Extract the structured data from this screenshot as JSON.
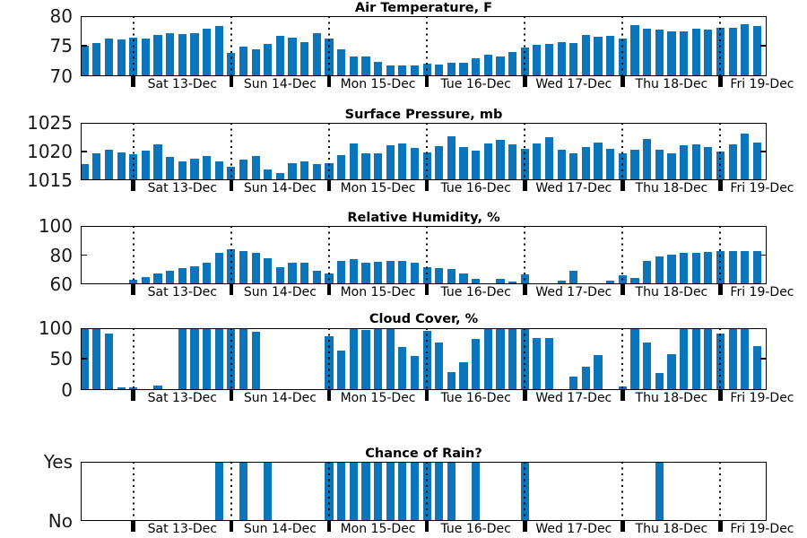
{
  "figure_title": "Weather forecast time-series (MATLAB-style stacked bar charts)",
  "colors": {
    "bar_fill": "#0b75bc",
    "axis": "#000000",
    "tick_text": "#1a1a1a",
    "background": "#ffffff"
  },
  "x_axis": {
    "n_slots": 56,
    "hours_per_slot": 3,
    "slots_per_day": 8,
    "day_boundary_slots": [
      4,
      12,
      20,
      28,
      36,
      44,
      52
    ],
    "day_labels": [
      "Sat 13-Dec",
      "Sun 14-Dec",
      "Mon 15-Dec",
      "Tue 16-Dec",
      "Wed 17-Dec",
      "Thu 18-Dec",
      "Fri 19-Dec"
    ]
  },
  "chart_data": [
    {
      "type": "bar",
      "title": "Air Temperature, F",
      "ylim": [
        70,
        80
      ],
      "yticks": [
        70,
        75,
        80
      ],
      "ytick_labels": [
        "70",
        "75",
        "80"
      ],
      "values": [
        75.0,
        75.5,
        76.2,
        76.1,
        76.4,
        76.2,
        76.8,
        77.1,
        77.0,
        77.1,
        77.9,
        78.3,
        73.9,
        74.9,
        74.4,
        75.3,
        76.7,
        76.4,
        75.7,
        77.1,
        76.3,
        74.4,
        73.3,
        73.3,
        72.4,
        71.7,
        71.7,
        71.7,
        72.1,
        71.9,
        72.2,
        72.2,
        73.0,
        73.6,
        73.2,
        74.0,
        74.8,
        75.2,
        75.4,
        75.6,
        75.5,
        76.8,
        76.6,
        76.7,
        76.3,
        78.5,
        77.9,
        77.8,
        77.5,
        77.4,
        77.9,
        77.8,
        78.0,
        78.1,
        78.7,
        78.3
      ]
    },
    {
      "type": "bar",
      "title": "Surface Pressure, mb",
      "ylim": [
        1015,
        1025
      ],
      "yticks": [
        1015,
        1020,
        1025
      ],
      "ytick_labels": [
        "1015",
        "1020",
        "1025"
      ],
      "values": [
        1017.7,
        1019.6,
        1020.3,
        1019.8,
        1019.5,
        1020.1,
        1021.3,
        1019.0,
        1018.2,
        1018.7,
        1019.1,
        1018.2,
        1017.3,
        1018.6,
        1019.2,
        1016.8,
        1016.2,
        1017.9,
        1018.2,
        1017.8,
        1017.9,
        1019.4,
        1021.4,
        1019.7,
        1019.7,
        1021.0,
        1021.4,
        1020.6,
        1019.8,
        1020.9,
        1022.7,
        1020.8,
        1020.1,
        1021.4,
        1022.0,
        1021.3,
        1020.4,
        1021.4,
        1022.5,
        1020.3,
        1019.6,
        1020.8,
        1021.6,
        1020.4,
        1019.6,
        1020.3,
        1022.2,
        1020.3,
        1019.6,
        1021.0,
        1021.3,
        1020.7,
        1019.9,
        1021.2,
        1023.1,
        1021.6
      ]
    },
    {
      "type": "bar",
      "title": "Relative Humidity, %",
      "ylim": [
        60,
        100
      ],
      "yticks": [
        60,
        80,
        100
      ],
      "ytick_labels": [
        "60",
        "80",
        "100"
      ],
      "values": [
        60,
        60,
        60,
        60,
        63,
        65,
        67.5,
        69.5,
        71,
        72.5,
        75,
        81.5,
        84,
        82.5,
        81.5,
        78,
        71.5,
        75,
        75,
        69,
        67.5,
        76,
        77.5,
        75,
        75.5,
        76,
        76,
        75,
        71.5,
        71,
        70.5,
        67.5,
        64,
        60,
        64,
        62,
        67,
        60,
        60,
        62.5,
        69.5,
        60,
        60.5,
        62.5,
        66,
        64.5,
        76,
        79,
        80.5,
        81.5,
        81.5,
        82,
        82.5,
        82.5,
        82.5,
        82.5
      ]
    },
    {
      "type": "bar",
      "title": "Cloud Cover, %",
      "ylim": [
        0,
        100
      ],
      "yticks": [
        0,
        50,
        100
      ],
      "ytick_labels": [
        "0",
        "50",
        "100"
      ],
      "values": [
        100,
        100,
        91,
        5,
        5,
        2,
        7,
        0,
        100,
        100,
        100,
        100,
        100,
        100,
        93,
        0,
        0,
        1,
        0,
        0,
        86,
        63,
        100,
        97,
        100,
        98,
        69,
        55,
        95,
        77,
        29,
        45,
        82,
        100,
        100,
        100,
        100,
        84,
        84,
        0,
        22,
        37,
        56,
        0,
        6,
        100,
        76,
        28,
        57,
        100,
        100,
        100,
        90,
        100,
        100,
        70
      ]
    },
    {
      "type": "bar",
      "title": "Chance of Rain?",
      "ylim": [
        0,
        1
      ],
      "yticks": [
        0,
        1
      ],
      "ytick_labels": [
        "No",
        "Yes"
      ],
      "values": [
        0,
        0,
        0,
        0,
        0,
        0,
        0,
        0,
        0,
        0,
        0,
        1,
        0,
        1,
        0,
        1,
        0,
        0,
        0,
        0,
        1,
        1,
        1,
        1,
        1,
        1,
        1,
        1,
        1,
        1,
        1,
        0,
        1,
        0,
        0,
        0,
        1,
        0,
        0,
        0,
        0,
        0,
        0,
        0,
        0,
        0,
        0,
        1,
        0,
        0,
        0,
        0,
        0,
        0,
        0,
        0
      ]
    }
  ]
}
